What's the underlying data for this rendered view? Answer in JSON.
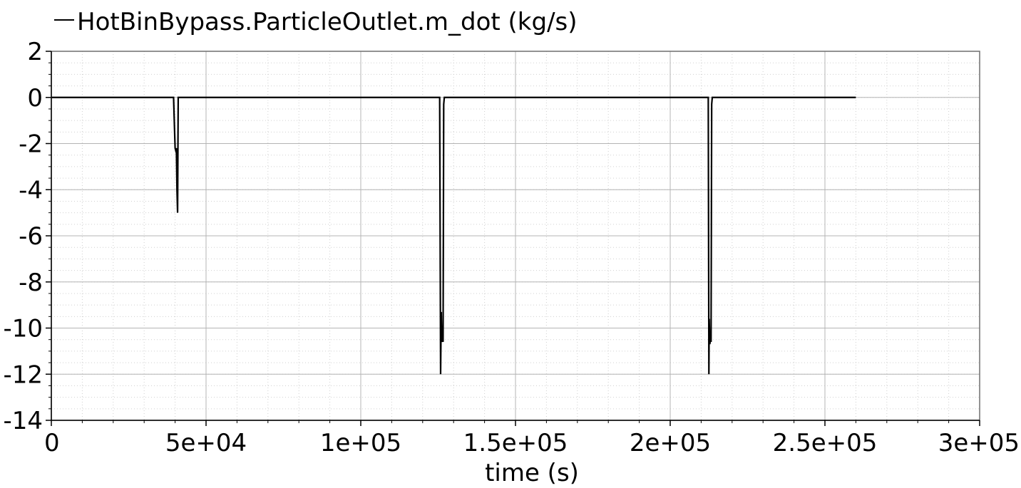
{
  "chart_data": {
    "type": "line",
    "legend": {
      "placement": "top-left",
      "entries": [
        "HotBinBypass.ParticleOutlet.m_dot (kg/s)"
      ]
    },
    "xlabel": "time (s)",
    "ylabel": "",
    "xlim": [
      0,
      300000
    ],
    "ylim": [
      -14,
      2
    ],
    "grid": true,
    "x_ticks": [
      0,
      50000,
      100000,
      150000,
      200000,
      250000,
      300000
    ],
    "x_tick_labels": [
      "0",
      "5e+04",
      "1e+05",
      "1.5e+05",
      "2e+05",
      "2.5e+05",
      "3e+05"
    ],
    "y_ticks": [
      2,
      0,
      -2,
      -4,
      -6,
      -8,
      -10,
      -12,
      -14
    ],
    "y_tick_labels": [
      "2",
      "0",
      "-2",
      "-4",
      "-6",
      "-8",
      "-10",
      "-12",
      "-14"
    ],
    "series": [
      {
        "name": "HotBinBypass.ParticleOutlet.m_dot (kg/s)",
        "color": "#000000",
        "x": [
          0,
          39500,
          40000,
          40200,
          40400,
          40600,
          40800,
          41000,
          41300,
          124000,
          125500,
          125800,
          126000,
          126200,
          126400,
          126600,
          126800,
          127000,
          210000,
          212300,
          212500,
          212600,
          212800,
          213000,
          213200,
          213400,
          213600,
          213900,
          260000
        ],
        "y": [
          0,
          0,
          -2.2,
          -2.3,
          -2.2,
          -4,
          -5,
          0,
          0,
          0,
          0,
          -12,
          -9.3,
          -10.6,
          -10.4,
          -10.6,
          -0.3,
          0,
          0,
          0,
          -12,
          -9.6,
          -10.7,
          -10.5,
          -10.6,
          -0.3,
          0,
          0,
          0
        ]
      }
    ]
  }
}
